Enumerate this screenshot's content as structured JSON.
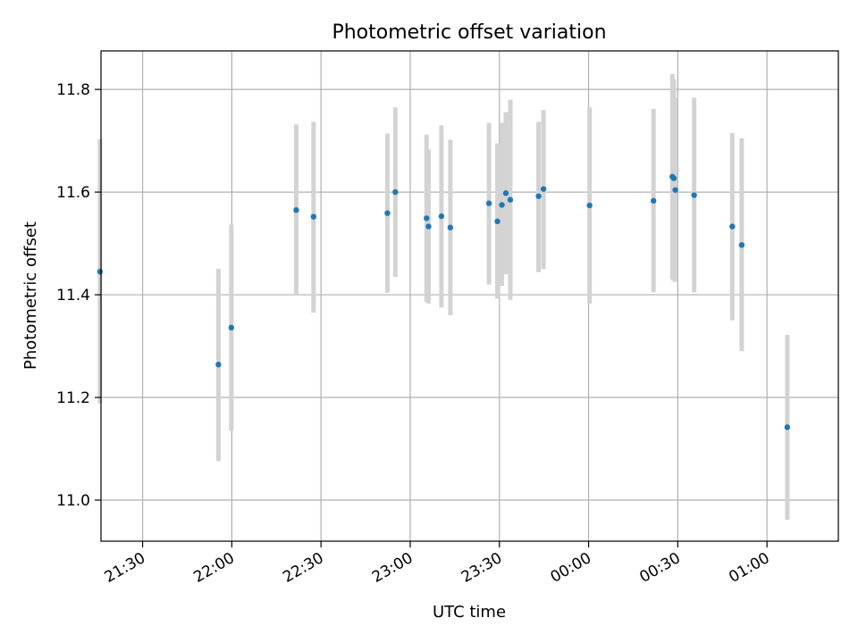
{
  "chart_data": {
    "type": "scatter",
    "title": "Photometric offset variation",
    "xlabel": "UTC time",
    "ylabel": "Photometric offset",
    "x_axis_type": "time",
    "x_axis_start_date": "2000-01-01",
    "xlim": [
      "21:16",
      "01:24"
    ],
    "ylim": [
      10.92,
      11.875
    ],
    "grid": true,
    "x_ticks": [
      "21:30",
      "22:00",
      "22:30",
      "23:00",
      "23:30",
      "00:00",
      "00:30",
      "01:00"
    ],
    "y_ticks": [
      "11.0",
      "11.2",
      "11.4",
      "11.6",
      "11.8"
    ],
    "point_color": "#1f77b4",
    "errorbar_color": "#d3d3d3",
    "points": [
      {
        "time": "21:15:40",
        "y": 11.445,
        "yerr_low": 11.188,
        "yerr_high": 11.703
      },
      {
        "time": "21:55:30",
        "y": 11.264,
        "yerr_low": 11.076,
        "yerr_high": 11.451
      },
      {
        "time": "21:59:50",
        "y": 11.336,
        "yerr_low": 11.135,
        "yerr_high": 11.537
      },
      {
        "time": "22:21:40",
        "y": 11.565,
        "yerr_low": 11.4,
        "yerr_high": 11.732
      },
      {
        "time": "22:27:30",
        "y": 11.552,
        "yerr_low": 11.365,
        "yerr_high": 11.737
      },
      {
        "time": "22:52:20",
        "y": 11.559,
        "yerr_low": 11.404,
        "yerr_high": 11.714
      },
      {
        "time": "22:55:00",
        "y": 11.6,
        "yerr_low": 11.435,
        "yerr_high": 11.765
      },
      {
        "time": "23:05:30",
        "y": 11.549,
        "yerr_low": 11.386,
        "yerr_high": 11.712
      },
      {
        "time": "23:06:10",
        "y": 11.533,
        "yerr_low": 11.383,
        "yerr_high": 11.683
      },
      {
        "time": "23:10:30",
        "y": 11.553,
        "yerr_low": 11.375,
        "yerr_high": 11.73
      },
      {
        "time": "23:13:30",
        "y": 11.531,
        "yerr_low": 11.36,
        "yerr_high": 11.702
      },
      {
        "time": "23:26:30",
        "y": 11.578,
        "yerr_low": 11.42,
        "yerr_high": 11.735
      },
      {
        "time": "23:29:20",
        "y": 11.543,
        "yerr_low": 11.392,
        "yerr_high": 11.695
      },
      {
        "time": "23:30:50",
        "y": 11.575,
        "yerr_low": 11.417,
        "yerr_high": 11.735
      },
      {
        "time": "23:32:10",
        "y": 11.598,
        "yerr_low": 11.44,
        "yerr_high": 11.756
      },
      {
        "time": "23:33:40",
        "y": 11.585,
        "yerr_low": 11.39,
        "yerr_high": 11.78
      },
      {
        "time": "23:43:10",
        "y": 11.592,
        "yerr_low": 11.444,
        "yerr_high": 11.737
      },
      {
        "time": "23:44:50",
        "y": 11.606,
        "yerr_low": 11.45,
        "yerr_high": 11.76
      },
      {
        "time": "00:00:20",
        "y": 11.574,
        "yerr_low": 11.383,
        "yerr_high": 11.765
      },
      {
        "time": "00:21:50",
        "y": 11.583,
        "yerr_low": 11.405,
        "yerr_high": 11.762
      },
      {
        "time": "00:28:10",
        "y": 11.63,
        "yerr_low": 11.43,
        "yerr_high": 11.83
      },
      {
        "time": "00:28:40",
        "y": 11.627,
        "yerr_low": 11.427,
        "yerr_high": 11.82
      },
      {
        "time": "00:29:10",
        "y": 11.604,
        "yerr_low": 11.425,
        "yerr_high": 11.783
      },
      {
        "time": "00:35:30",
        "y": 11.594,
        "yerr_low": 11.405,
        "yerr_high": 11.784
      },
      {
        "time": "00:48:20",
        "y": 11.533,
        "yerr_low": 11.35,
        "yerr_high": 11.715
      },
      {
        "time": "00:51:30",
        "y": 11.497,
        "yerr_low": 11.29,
        "yerr_high": 11.705
      },
      {
        "time": "01:06:50",
        "y": 11.142,
        "yerr_low": 10.962,
        "yerr_high": 11.322
      }
    ]
  }
}
